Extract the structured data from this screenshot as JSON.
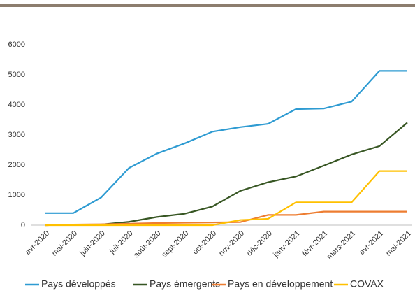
{
  "chart_data": {
    "type": "line",
    "categories": [
      "avr-2020",
      "mai-2020",
      "juin-2020",
      "juil-2020",
      "août-2020",
      "sept-2020",
      "oct-2020",
      "nov-2020",
      "déc-2020",
      "janv-2021",
      "févr-2021",
      "mars-2021",
      "avr-2021",
      "mai-2021"
    ],
    "series": [
      {
        "name": "Pays développés",
        "color": "#2e9bd2",
        "values": [
          400,
          400,
          920,
          1900,
          2380,
          2720,
          3110,
          3260,
          3370,
          3860,
          3880,
          4110,
          5130,
          5130
        ]
      },
      {
        "name": "Pays émergents",
        "color": "#375623",
        "values": [
          0,
          20,
          20,
          110,
          270,
          380,
          620,
          1140,
          1430,
          1620,
          1980,
          2350,
          2630,
          3410
        ]
      },
      {
        "name": "Pays en développement",
        "color": "#ed7d31",
        "values": [
          0,
          20,
          30,
          50,
          70,
          80,
          90,
          100,
          340,
          340,
          450,
          450,
          450,
          450
        ]
      },
      {
        "name": "COVAX",
        "color": "#ffc000",
        "values": [
          0,
          0,
          0,
          0,
          0,
          0,
          0,
          170,
          210,
          760,
          760,
          760,
          1800,
          1800
        ]
      }
    ],
    "ylim": [
      0,
      6000
    ],
    "yticks": [
      0,
      1000,
      2000,
      3000,
      4000,
      5000,
      6000
    ],
    "grid": false,
    "legend": "bottom"
  }
}
